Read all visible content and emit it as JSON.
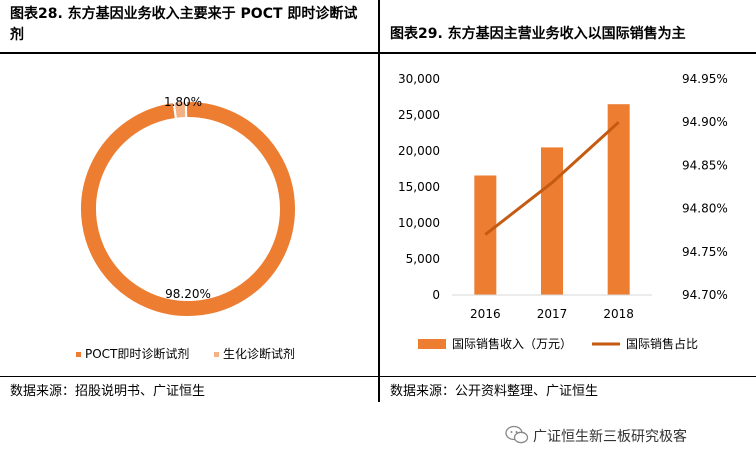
{
  "left": {
    "title": "图表28.  东方基因业务收入主要来于 POCT 即时诊断试剂",
    "source": "数据来源：招股说明书、广证恒生"
  },
  "right": {
    "title": "图表29.  东方基因主营业务收入以国际销售为主",
    "source": "数据来源：公开资料整理、广证恒生"
  },
  "watermark": "广证恒生新三板研究极客",
  "chart_data": [
    {
      "type": "pie",
      "style": "donut",
      "labels": [
        "POCT即时诊断试剂",
        "生化诊断试剂"
      ],
      "values": [
        98.2,
        1.8
      ],
      "data_labels": [
        "98.20%",
        "1.80%"
      ],
      "colors": [
        "#ED7D31",
        "#F4B183"
      ],
      "legend": "bottom"
    },
    {
      "type": "bar",
      "categories": [
        "2016",
        "2017",
        "2018"
      ],
      "series": [
        {
          "name": "国际销售收入（万元）",
          "type": "bar",
          "axis": "left",
          "color": "#ED7D31",
          "values": [
            16600,
            20500,
            26500
          ]
        },
        {
          "name": "国际销售占比",
          "type": "line",
          "axis": "right",
          "color": "#C55A11",
          "values": [
            94.77,
            94.83,
            94.9
          ]
        }
      ],
      "y_left": {
        "min": 0,
        "max": 30000,
        "ticks": [
          "0",
          "5,000",
          "10,000",
          "15,000",
          "20,000",
          "25,000",
          "30,000"
        ]
      },
      "y_right": {
        "min": 94.7,
        "max": 94.95,
        "ticks": [
          "94.70%",
          "94.75%",
          "94.80%",
          "94.85%",
          "94.90%",
          "94.95%"
        ]
      },
      "grid": false,
      "legend": "bottom"
    }
  ]
}
